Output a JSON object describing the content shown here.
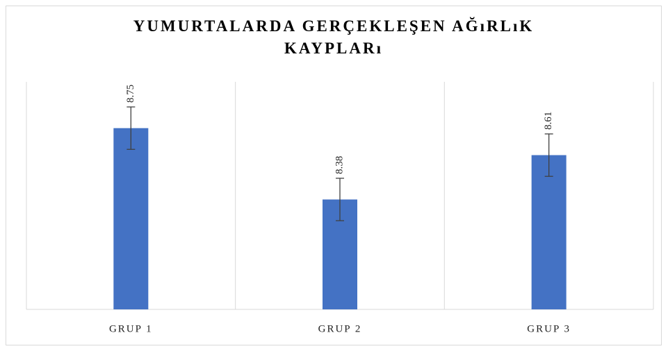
{
  "chart_data": {
    "type": "bar",
    "title": "YUMURTALARDA GERÇEKLEŞEN AĞıRLıK KAYPLARı",
    "categories": [
      "GRUP 1",
      "GRUP 2",
      "GRUP 3"
    ],
    "values": [
      8.75,
      8.38,
      8.61
    ],
    "errors": [
      0.11,
      0.11,
      0.11
    ],
    "color": "#4472c4",
    "ylim": [
      7.81,
      8.99
    ],
    "grid": true
  }
}
